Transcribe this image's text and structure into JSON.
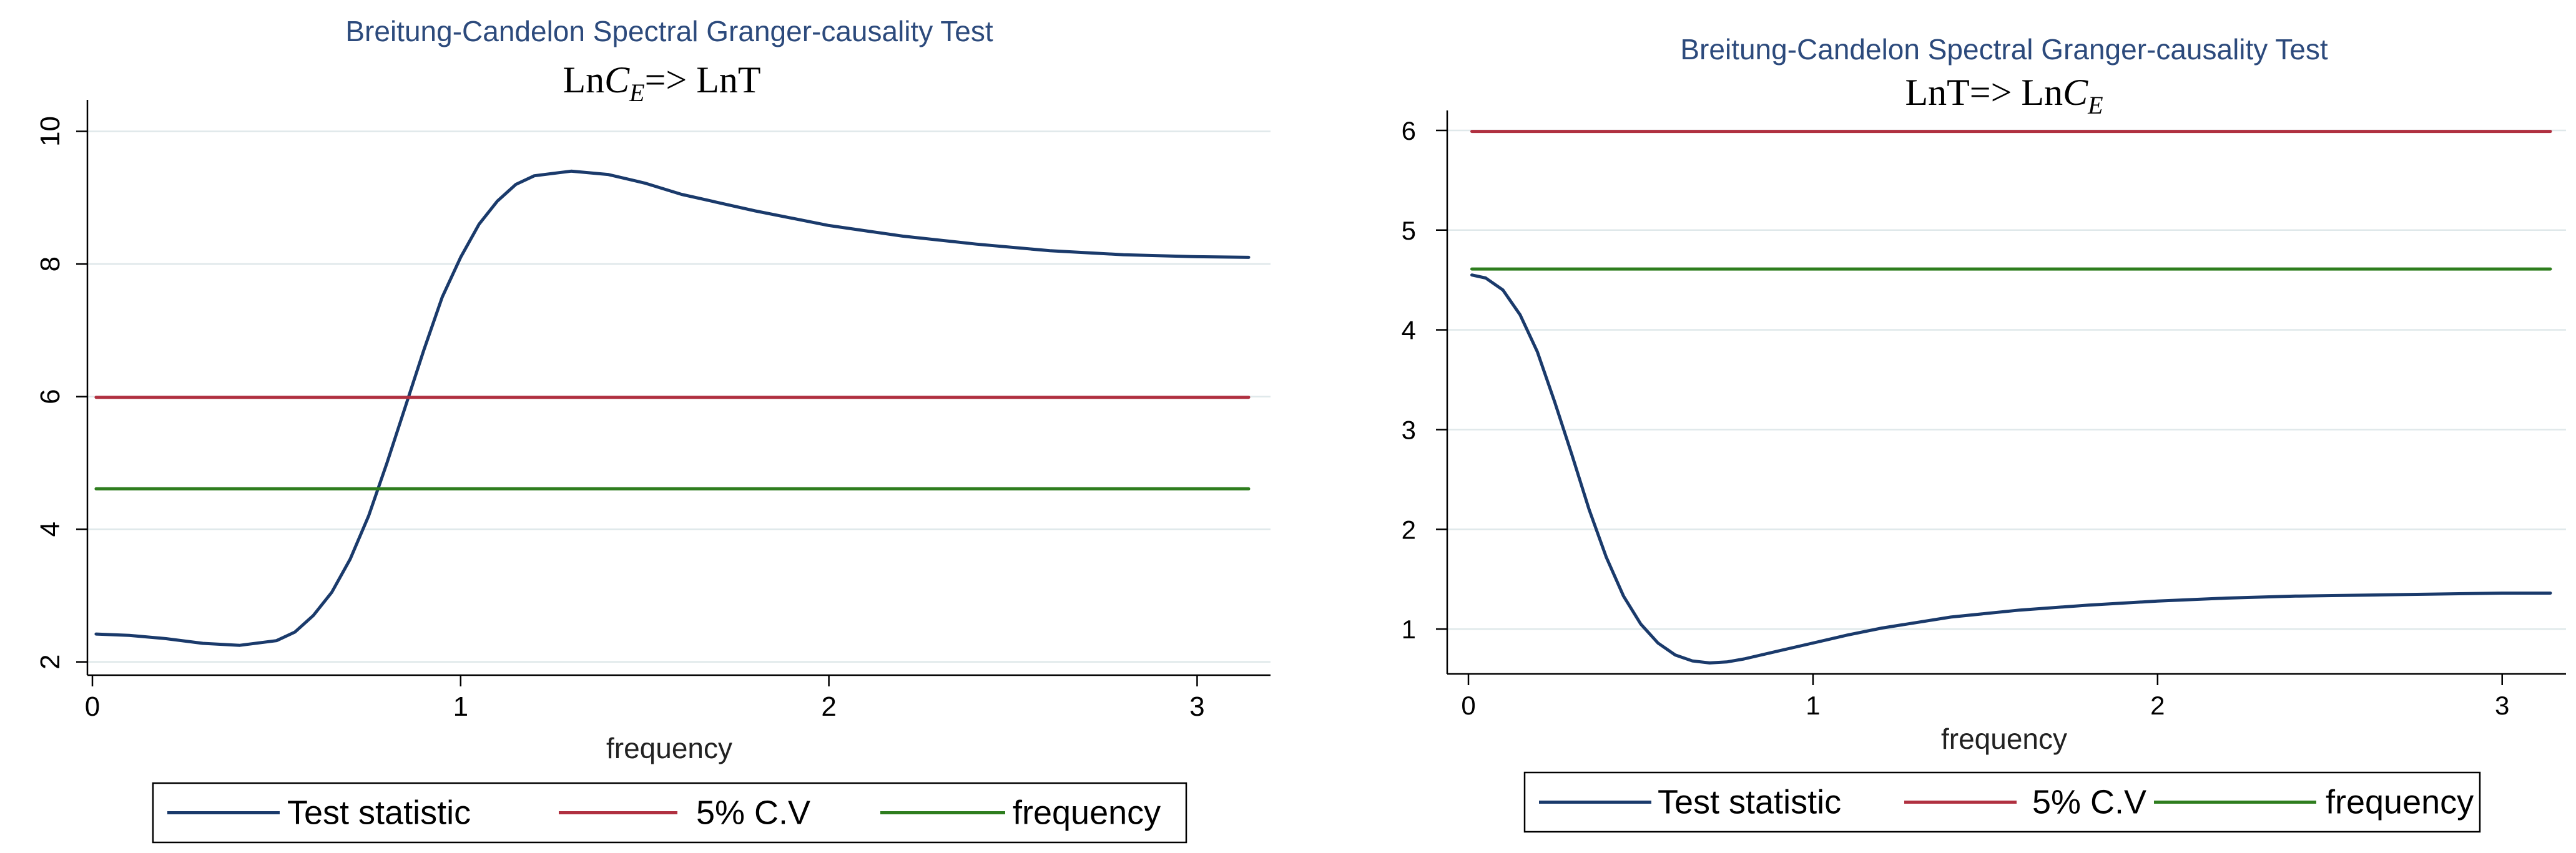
{
  "chart_data": [
    {
      "type": "line",
      "title": "Breitung-Candelon Spectral Granger-causality Test",
      "subtitle_prefix": "Ln",
      "subtitle_var": "C",
      "subtitle_sub": "E",
      "subtitle_suffix": "=> LnT",
      "xlabel": "frequency",
      "ylabel": "",
      "xlim": [
        0,
        3.14
      ],
      "ylim": [
        1.8,
        10.4
      ],
      "xticks": [
        0,
        1,
        2,
        3
      ],
      "yticks": [
        2,
        4,
        6,
        8,
        10
      ],
      "grid": true,
      "legend": [
        "Test statistic",
        "5% C.V",
        "frequency"
      ],
      "legend_position": "bottom",
      "series": [
        {
          "name": "Test statistic",
          "color": "#1a3a6b",
          "x": [
            0.01,
            0.1,
            0.2,
            0.3,
            0.4,
            0.5,
            0.55,
            0.6,
            0.65,
            0.7,
            0.75,
            0.8,
            0.85,
            0.9,
            0.95,
            1.0,
            1.05,
            1.1,
            1.15,
            1.2,
            1.3,
            1.4,
            1.5,
            1.6,
            1.8,
            2.0,
            2.2,
            2.4,
            2.6,
            2.8,
            3.0,
            3.14
          ],
          "y": [
            2.42,
            2.4,
            2.35,
            2.28,
            2.25,
            2.32,
            2.45,
            2.7,
            3.05,
            3.55,
            4.2,
            5.0,
            5.85,
            6.7,
            7.5,
            8.1,
            8.6,
            8.95,
            9.2,
            9.33,
            9.4,
            9.35,
            9.22,
            9.05,
            8.8,
            8.58,
            8.42,
            8.3,
            8.2,
            8.14,
            8.11,
            8.1
          ]
        },
        {
          "name": "5% C.V",
          "color": "#b03040",
          "x": [
            0.01,
            3.14
          ],
          "y": [
            5.99,
            5.99
          ]
        },
        {
          "name": "frequency",
          "color": "#2e7d1e",
          "x": [
            0.01,
            3.14
          ],
          "y": [
            4.61,
            4.61
          ]
        }
      ]
    },
    {
      "type": "line",
      "title": "Breitung-Candelon Spectral Granger-causality Test",
      "subtitle_prefix": "LnT=> Ln",
      "subtitle_var": "C",
      "subtitle_sub": "E",
      "subtitle_suffix": "",
      "xlabel": "frequency",
      "ylabel": "",
      "xlim": [
        0,
        3.14
      ],
      "ylim": [
        0.55,
        6.15
      ],
      "xticks": [
        0,
        1,
        2,
        3
      ],
      "yticks": [
        1,
        2,
        3,
        4,
        5,
        6
      ],
      "grid": true,
      "legend": [
        "Test statistic",
        "5% C.V",
        "frequency"
      ],
      "legend_position": "bottom",
      "series": [
        {
          "name": "Test statistic",
          "color": "#1a3a6b",
          "x": [
            0.01,
            0.05,
            0.1,
            0.15,
            0.2,
            0.25,
            0.3,
            0.35,
            0.4,
            0.45,
            0.5,
            0.55,
            0.6,
            0.65,
            0.7,
            0.75,
            0.8,
            0.9,
            1.0,
            1.1,
            1.2,
            1.4,
            1.6,
            1.8,
            2.0,
            2.2,
            2.4,
            2.6,
            2.8,
            3.0,
            3.14
          ],
          "y": [
            4.55,
            4.52,
            4.4,
            4.15,
            3.78,
            3.28,
            2.75,
            2.2,
            1.72,
            1.33,
            1.05,
            0.86,
            0.74,
            0.68,
            0.66,
            0.67,
            0.7,
            0.78,
            0.86,
            0.94,
            1.01,
            1.12,
            1.19,
            1.24,
            1.28,
            1.31,
            1.33,
            1.34,
            1.35,
            1.36,
            1.36
          ]
        },
        {
          "name": "5% C.V",
          "color": "#b03040",
          "x": [
            0.01,
            3.14
          ],
          "y": [
            5.99,
            5.99
          ]
        },
        {
          "name": "frequency",
          "color": "#2e7d1e",
          "x": [
            0.01,
            3.14
          ],
          "y": [
            4.61,
            4.61
          ]
        }
      ]
    }
  ]
}
